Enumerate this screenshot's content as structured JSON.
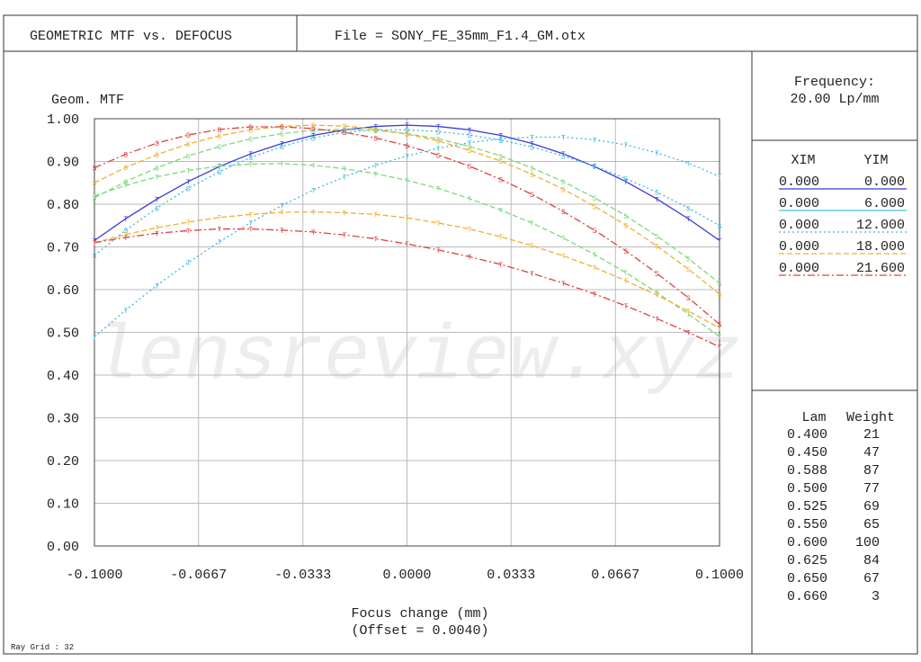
{
  "header": {
    "title": "GEOMETRIC MTF vs. DEFOCUS",
    "file": "File = SONY_FE_35mm_F1.4_GM.otx"
  },
  "chart_data": {
    "type": "line",
    "ylabel": "Geom. MTF",
    "xlabel": "Focus change (mm)",
    "subxlabel": "(Offset = 0.0040)",
    "watermark": "lensreview.xyz",
    "x": [
      -0.1,
      -0.09,
      -0.08,
      -0.07,
      -0.06,
      -0.05,
      -0.04,
      -0.03,
      -0.02,
      -0.01,
      0,
      0.01,
      0.02,
      0.03,
      0.04,
      0.05,
      0.06,
      0.07,
      0.08,
      0.09,
      0.1
    ],
    "xlim": [
      -0.1,
      0.1
    ],
    "xticks": [
      {
        "value": -0.1,
        "label": "-0.1000"
      },
      {
        "value": -0.0667,
        "label": "-0.0667"
      },
      {
        "value": -0.0333,
        "label": "-0.0333"
      },
      {
        "value": 0,
        "label": "0.0000"
      },
      {
        "value": 0.0333,
        "label": "0.0333"
      },
      {
        "value": 0.0667,
        "label": "0.0667"
      },
      {
        "value": 0.1,
        "label": "0.1000"
      }
    ],
    "ylim": [
      0,
      1
    ],
    "yticks": [
      {
        "value": 0,
        "label": "0.00"
      },
      {
        "value": 0.1,
        "label": "0.10"
      },
      {
        "value": 0.2,
        "label": "0.20"
      },
      {
        "value": 0.3,
        "label": "0.30"
      },
      {
        "value": 0.4,
        "label": "0.40"
      },
      {
        "value": 0.5,
        "label": "0.50"
      },
      {
        "value": 0.6,
        "label": "0.60"
      },
      {
        "value": 0.7,
        "label": "0.70"
      },
      {
        "value": 0.8,
        "label": "0.80"
      },
      {
        "value": 0.9,
        "label": "0.90"
      },
      {
        "value": 1,
        "label": "1.00"
      }
    ],
    "grid": true,
    "series": [
      {
        "color": "#3a3ad8",
        "dash": "none",
        "marker": "T",
        "values": [
          0.715,
          0.766,
          0.812,
          0.853,
          0.888,
          0.918,
          0.942,
          0.961,
          0.974,
          0.982,
          0.985,
          0.982,
          0.974,
          0.961,
          0.942,
          0.918,
          0.888,
          0.853,
          0.812,
          0.766,
          0.715
        ]
      },
      {
        "color": "#3ab8e0",
        "dash": "2 3",
        "marker": "T",
        "values": [
          0.489,
          0.552,
          0.61,
          0.663,
          0.712,
          0.757,
          0.797,
          0.833,
          0.864,
          0.891,
          0.913,
          0.931,
          0.944,
          0.953,
          0.957,
          0.957,
          0.951,
          0.939,
          0.92,
          0.896,
          0.865
        ]
      },
      {
        "color": "#3ab8e0",
        "dash": "2 3",
        "marker": "S",
        "values": [
          0.68,
          0.739,
          0.791,
          0.837,
          0.876,
          0.909,
          0.935,
          0.955,
          0.968,
          0.974,
          0.974,
          0.97,
          0.962,
          0.95,
          0.934,
          0.913,
          0.889,
          0.86,
          0.828,
          0.791,
          0.75
        ]
      },
      {
        "color": "#7ed87e",
        "dash": "6 3",
        "marker": "S",
        "values": [
          0.815,
          0.853,
          0.885,
          0.913,
          0.935,
          0.953,
          0.965,
          0.973,
          0.975,
          0.973,
          0.965,
          0.953,
          0.935,
          0.913,
          0.885,
          0.853,
          0.815,
          0.773,
          0.725,
          0.673,
          0.615
        ]
      },
      {
        "color": "#7ed87e",
        "dash": "6 3",
        "marker": "T",
        "values": [
          0.819,
          0.844,
          0.864,
          0.879,
          0.889,
          0.894,
          0.895,
          0.891,
          0.883,
          0.871,
          0.856,
          0.837,
          0.813,
          0.786,
          0.756,
          0.721,
          0.682,
          0.64,
          0.593,
          0.543,
          0.49
        ]
      },
      {
        "color": "#f0b030",
        "dash": "6 3",
        "marker": "S",
        "values": [
          0.85,
          0.886,
          0.916,
          0.941,
          0.96,
          0.974,
          0.982,
          0.985,
          0.983,
          0.976,
          0.964,
          0.948,
          0.926,
          0.901,
          0.87,
          0.835,
          0.795,
          0.751,
          0.702,
          0.648,
          0.59
        ]
      },
      {
        "color": "#f0b030",
        "dash": "6 3",
        "marker": "T",
        "values": [
          0.71,
          0.729,
          0.745,
          0.758,
          0.769,
          0.776,
          0.781,
          0.782,
          0.78,
          0.776,
          0.768,
          0.756,
          0.742,
          0.724,
          0.703,
          0.679,
          0.652,
          0.621,
          0.587,
          0.55,
          0.51
        ]
      },
      {
        "color": "#e04040",
        "dash": "8 3 2 3",
        "marker": "S",
        "values": [
          0.885,
          0.917,
          0.943,
          0.962,
          0.975,
          0.981,
          0.981,
          0.977,
          0.968,
          0.955,
          0.937,
          0.915,
          0.889,
          0.858,
          0.823,
          0.783,
          0.739,
          0.691,
          0.638,
          0.581,
          0.519
        ]
      },
      {
        "color": "#e04040",
        "dash": "8 3 2 3",
        "marker": "T",
        "values": [
          0.71,
          0.722,
          0.732,
          0.738,
          0.742,
          0.742,
          0.739,
          0.735,
          0.728,
          0.719,
          0.707,
          0.693,
          0.677,
          0.659,
          0.638,
          0.615,
          0.59,
          0.562,
          0.532,
          0.5,
          0.466
        ]
      }
    ]
  },
  "panel": {
    "freq_title": "Frequency:",
    "freq_value": "20.00  Lp/mm",
    "field_header": [
      "XIM",
      "YIM"
    ],
    "fields": [
      {
        "xim": "0.000",
        "yim": "0.000",
        "color": "#3a3ad8",
        "dash": "none"
      },
      {
        "xim": "0.000",
        "yim": "6.000",
        "color": "#40c8d8",
        "dash": "none"
      },
      {
        "xim": "0.000",
        "yim": "12.000",
        "color": "#3ab8e0",
        "dash": "2 3"
      },
      {
        "xim": "0.000",
        "yim": "18.000",
        "color": "#f0b030",
        "dash": "6 3"
      },
      {
        "xim": "0.000",
        "yim": "21.600",
        "color": "#e04040",
        "dash": "8 3 2 3"
      }
    ],
    "wave_header": [
      "Lam",
      "Weight"
    ],
    "waves": [
      [
        "0.400",
        "21"
      ],
      [
        "0.450",
        "47"
      ],
      [
        "0.588",
        "87"
      ],
      [
        "0.500",
        "77"
      ],
      [
        "0.525",
        "69"
      ],
      [
        "0.550",
        "65"
      ],
      [
        "0.600",
        "100"
      ],
      [
        "0.625",
        "84"
      ],
      [
        "0.650",
        "67"
      ],
      [
        "0.660",
        "3"
      ]
    ]
  },
  "footer": "Ray Grid : 32"
}
